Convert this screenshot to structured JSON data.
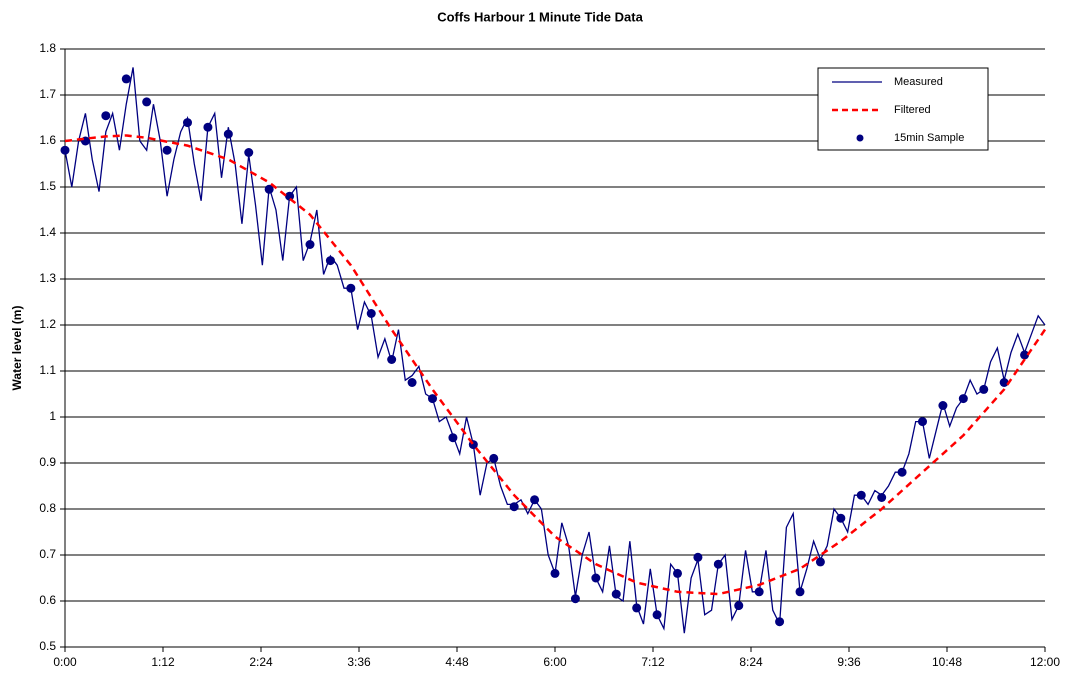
{
  "chart_data": {
    "type": "line",
    "title": "Coffs Harbour 1 Minute Tide Data",
    "y_label": "Water level (m)",
    "xlim": [
      0,
      720
    ],
    "ylim": [
      0.5,
      1.8
    ],
    "xticks": [
      {
        "value": 0,
        "label": "0:00"
      },
      {
        "value": 72,
        "label": "1:12"
      },
      {
        "value": 144,
        "label": "2:24"
      },
      {
        "value": 216,
        "label": "3:36"
      },
      {
        "value": 288,
        "label": "4:48"
      },
      {
        "value": 360,
        "label": "6:00"
      },
      {
        "value": 432,
        "label": "7:12"
      },
      {
        "value": 504,
        "label": "8:24"
      },
      {
        "value": 576,
        "label": "9:36"
      },
      {
        "value": 648,
        "label": "10:48"
      },
      {
        "value": 720,
        "label": "12:00"
      }
    ],
    "yticks": [
      0.5,
      0.6,
      0.7,
      0.8,
      0.9,
      1,
      1.1,
      1.2,
      1.3,
      1.4,
      1.5,
      1.6,
      1.7,
      1.8
    ],
    "grid": true,
    "legend": "top-right",
    "series": [
      {
        "name": "Measured",
        "color": "#000080",
        "style": "line",
        "x": [
          0,
          5,
          10,
          15,
          20,
          25,
          30,
          35,
          40,
          45,
          50,
          55,
          60,
          65,
          70,
          75,
          80,
          85,
          90,
          95,
          100,
          105,
          110,
          115,
          120,
          125,
          130,
          135,
          140,
          145,
          150,
          155,
          160,
          165,
          170,
          175,
          180,
          185,
          190,
          195,
          200,
          205,
          210,
          215,
          220,
          225,
          230,
          235,
          240,
          245,
          250,
          255,
          260,
          265,
          270,
          275,
          280,
          285,
          290,
          295,
          300,
          305,
          310,
          315,
          320,
          325,
          330,
          335,
          340,
          345,
          350,
          355,
          360,
          365,
          370,
          375,
          380,
          385,
          390,
          395,
          400,
          405,
          410,
          415,
          420,
          425,
          430,
          435,
          440,
          445,
          450,
          455,
          460,
          465,
          470,
          475,
          480,
          485,
          490,
          495,
          500,
          505,
          510,
          515,
          520,
          525,
          530,
          535,
          540,
          545,
          550,
          555,
          560,
          565,
          570,
          575,
          580,
          585,
          590,
          595,
          600,
          605,
          610,
          615,
          620,
          625,
          630,
          635,
          640,
          645,
          650,
          655,
          660,
          665,
          670,
          675,
          680,
          685,
          690,
          695,
          700,
          705,
          710,
          715,
          720
        ],
        "values": [
          1.58,
          1.5,
          1.6,
          1.66,
          1.56,
          1.49,
          1.62,
          1.66,
          1.58,
          1.68,
          1.76,
          1.6,
          1.58,
          1.68,
          1.6,
          1.48,
          1.56,
          1.62,
          1.65,
          1.55,
          1.47,
          1.63,
          1.66,
          1.52,
          1.63,
          1.55,
          1.42,
          1.57,
          1.46,
          1.33,
          1.5,
          1.45,
          1.34,
          1.48,
          1.5,
          1.34,
          1.38,
          1.45,
          1.31,
          1.35,
          1.33,
          1.28,
          1.28,
          1.19,
          1.25,
          1.22,
          1.13,
          1.17,
          1.12,
          1.19,
          1.08,
          1.09,
          1.11,
          1.05,
          1.04,
          0.99,
          1.0,
          0.96,
          0.92,
          1.0,
          0.94,
          0.83,
          0.9,
          0.91,
          0.85,
          0.81,
          0.81,
          0.82,
          0.79,
          0.82,
          0.8,
          0.7,
          0.66,
          0.77,
          0.72,
          0.61,
          0.7,
          0.75,
          0.65,
          0.62,
          0.72,
          0.61,
          0.6,
          0.73,
          0.59,
          0.55,
          0.67,
          0.57,
          0.54,
          0.68,
          0.66,
          0.53,
          0.65,
          0.69,
          0.57,
          0.58,
          0.68,
          0.7,
          0.56,
          0.59,
          0.71,
          0.62,
          0.62,
          0.71,
          0.58,
          0.55,
          0.76,
          0.79,
          0.62,
          0.67,
          0.73,
          0.69,
          0.72,
          0.8,
          0.78,
          0.75,
          0.83,
          0.83,
          0.81,
          0.84,
          0.83,
          0.85,
          0.88,
          0.88,
          0.92,
          0.99,
          0.99,
          0.91,
          0.97,
          1.03,
          0.98,
          1.02,
          1.04,
          1.08,
          1.05,
          1.06,
          1.12,
          1.15,
          1.08,
          1.14,
          1.18,
          1.14,
          1.18,
          1.22,
          1.2
        ]
      },
      {
        "name": "Filtered",
        "color": "#ff0000",
        "style": "dash",
        "x": [
          0,
          30,
          45,
          60,
          90,
          120,
          150,
          180,
          210,
          240,
          270,
          300,
          330,
          360,
          390,
          420,
          450,
          480,
          510,
          540,
          570,
          600,
          630,
          660,
          690,
          720
        ],
        "values": [
          1.6,
          1.61,
          1.612,
          1.607,
          1.59,
          1.56,
          1.51,
          1.44,
          1.33,
          1.19,
          1.06,
          0.94,
          0.83,
          0.74,
          0.68,
          0.64,
          0.62,
          0.615,
          0.635,
          0.67,
          0.73,
          0.8,
          0.88,
          0.96,
          1.06,
          1.19
        ]
      },
      {
        "name": "15min Sample",
        "color": "#000080",
        "style": "marker",
        "x": [
          0,
          15,
          30,
          45,
          60,
          75,
          90,
          105,
          120,
          135,
          150,
          165,
          180,
          195,
          210,
          225,
          240,
          255,
          270,
          285,
          300,
          315,
          330,
          345,
          360,
          375,
          390,
          405,
          420,
          435,
          450,
          465,
          480,
          495,
          510,
          525,
          540,
          555,
          570,
          585,
          600,
          615,
          630,
          645,
          660,
          675,
          690,
          705
        ],
        "values": [
          1.58,
          1.6,
          1.655,
          1.735,
          1.685,
          1.58,
          1.64,
          1.63,
          1.615,
          1.575,
          1.495,
          1.48,
          1.375,
          1.34,
          1.28,
          1.225,
          1.125,
          1.075,
          1.04,
          0.955,
          0.94,
          0.91,
          0.805,
          0.82,
          0.66,
          0.605,
          0.65,
          0.615,
          0.585,
          0.57,
          0.66,
          0.695,
          0.68,
          0.59,
          0.62,
          0.555,
          0.62,
          0.685,
          0.78,
          0.83,
          0.825,
          0.88,
          0.99,
          1.025,
          1.04,
          1.06,
          1.075,
          1.135
        ]
      }
    ]
  }
}
